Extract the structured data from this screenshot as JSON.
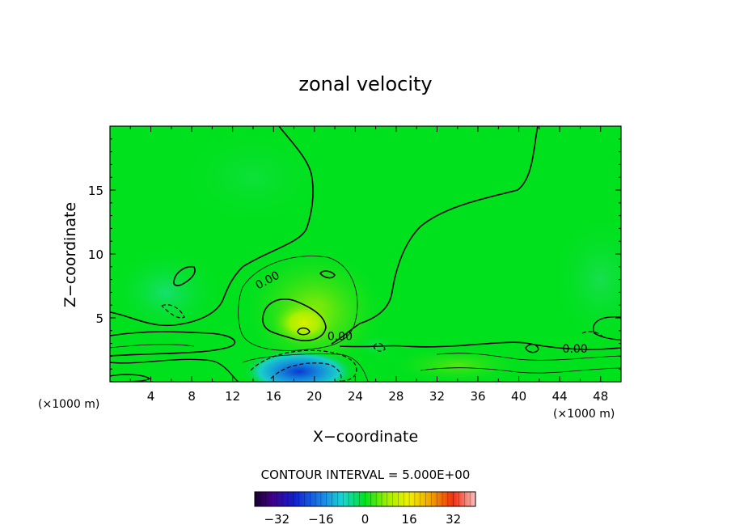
{
  "chart_data": {
    "type": "heatmap",
    "title": "zonal velocity",
    "xlabel": "X−coordinate",
    "ylabel": "Z−coordinate",
    "x_unit_left": "(×1000 m)",
    "x_unit_right": "(×1000 m)",
    "xlim": [
      0,
      50
    ],
    "ylim": [
      0,
      20
    ],
    "x_ticks": [
      4,
      8,
      12,
      16,
      20,
      24,
      28,
      32,
      36,
      40,
      44,
      48
    ],
    "x_tick_labels": [
      "4",
      "8",
      "12",
      "16",
      "20",
      "24",
      "28",
      "32",
      "36",
      "40",
      "44",
      "48"
    ],
    "y_ticks": [
      5,
      10,
      15
    ],
    "y_tick_labels": [
      "5",
      "10",
      "15"
    ],
    "contour_interval_text": "CONTOUR INTERVAL = 5.000E+00",
    "contour_labels": [
      {
        "text": "0.00",
        "x": 15.5,
        "y": 7.8
      },
      {
        "text": "0.00",
        "x": 22.5,
        "y": 3.4
      },
      {
        "text": "0.00",
        "x": 45.5,
        "y": 2.4
      }
    ],
    "colorbar": {
      "range": [
        -40,
        40
      ],
      "tick_values": [
        -32,
        -16,
        0,
        16,
        32
      ],
      "tick_labels": [
        "−32",
        "−16",
        "0",
        "16",
        "32"
      ]
    },
    "features": [
      {
        "kind": "positive_max",
        "x": 19,
        "y": 4.5,
        "value": 15
      },
      {
        "kind": "negative_min",
        "x": 18,
        "y": 0.8,
        "value": -25
      }
    ],
    "colors": {
      "background_field": "#00e11e",
      "positive": "#d2f000",
      "negative": "#0a3cd2"
    }
  }
}
